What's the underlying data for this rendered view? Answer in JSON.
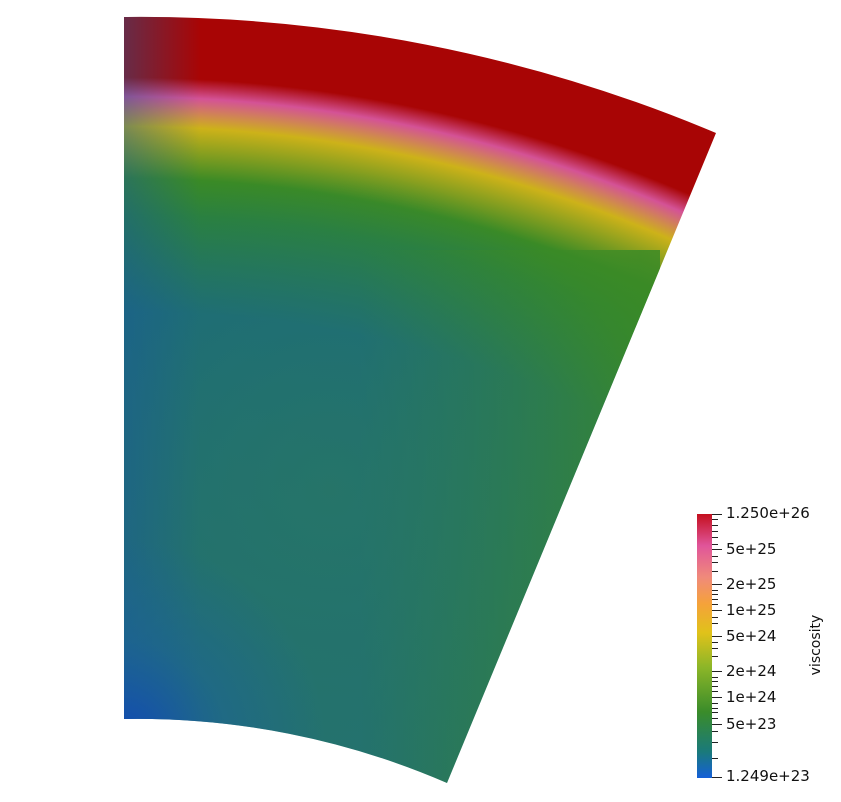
{
  "colorbar": {
    "title": "viscosity",
    "max_label": "1.250e+26",
    "min_label": "1.249e+23",
    "tick_labels": [
      "5e+25",
      "2e+25",
      "1e+25",
      "5e+24",
      "2e+24",
      "1e+24",
      "5e+23"
    ],
    "scale": "log",
    "range": [
      1.249e+23,
      1.25e+26
    ],
    "colors": {
      "top": "#c4101e",
      "pink": "#e0559a",
      "salmon": "#f08a7a",
      "orange": "#f5a23a",
      "yellow": "#e0c21a",
      "lime": "#8cb628",
      "green": "#3a8c2a",
      "teal": "#1a7a7a",
      "blue": "#1560d8"
    }
  },
  "field_colors": {
    "surface_red": "#a80505",
    "pink": "#d45296",
    "yellow": "#cdb219",
    "green": "#3a8a26",
    "teal": "#1a6b7a",
    "interior": "#22736e",
    "core_blue": "#1047b8"
  }
}
